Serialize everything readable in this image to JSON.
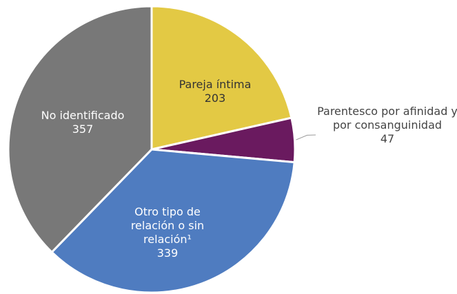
{
  "chart_data": {
    "type": "pie",
    "categories": [
      "Pareja íntima",
      "Parentesco por afinidad y por consanguinidad",
      "Otro tipo de relación o sin relación¹",
      "No identificado"
    ],
    "values": [
      203,
      47,
      339,
      357
    ],
    "colors": [
      "#e3c944",
      "#6a1a5f",
      "#4f7cc0",
      "#787878"
    ]
  }
}
